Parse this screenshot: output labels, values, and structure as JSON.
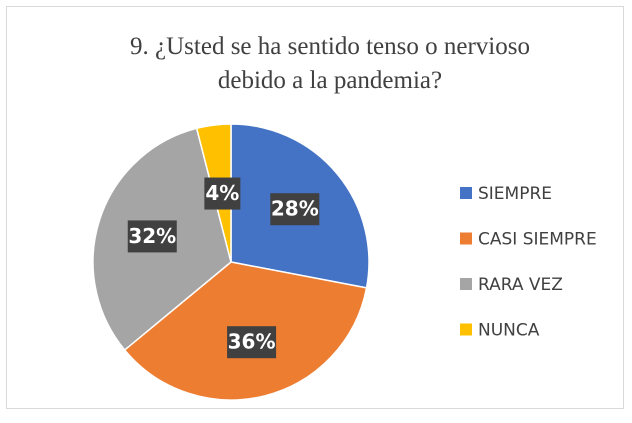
{
  "chart_data": {
    "type": "pie",
    "title": "9. ¿Usted se ha sentido tenso o nervioso debido a la pandemia?",
    "categories": [
      "SIEMPRE",
      "CASI SIEMPRE",
      "RARA VEZ",
      "NUNCA"
    ],
    "values": [
      28,
      36,
      32,
      4
    ],
    "value_labels": [
      "28%",
      "36%",
      "32%",
      "4%"
    ],
    "colors": [
      "#4472c4",
      "#ed7d31",
      "#a5a5a5",
      "#ffc000"
    ],
    "legend": "right"
  }
}
